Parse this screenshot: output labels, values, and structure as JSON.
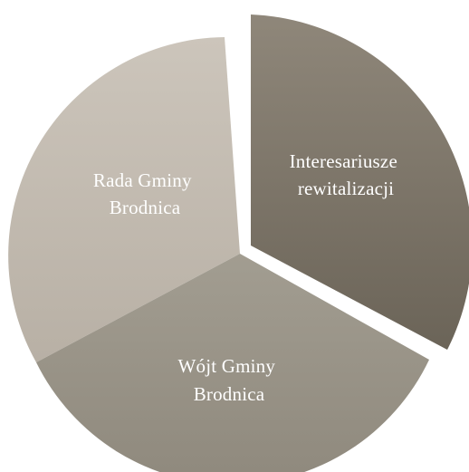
{
  "diagram": {
    "type": "segmented-pie",
    "segments": [
      {
        "id": "interesariusze",
        "lines": [
          "Interesariusze",
          "rewitalizacji"
        ],
        "color_light": "#8f877a",
        "color_dark": "#6b6458",
        "exploded": true
      },
      {
        "id": "wojt",
        "lines": [
          "Wójt Gminy",
          "Brodnica"
        ],
        "color_light": "#a29d91",
        "color_dark": "#8f897d",
        "exploded": false
      },
      {
        "id": "rada",
        "lines": [
          "Rada Gminy",
          "Brodnica"
        ],
        "color_light": "#ccc5bb",
        "color_dark": "#b8b0a5",
        "exploded": false
      }
    ]
  }
}
